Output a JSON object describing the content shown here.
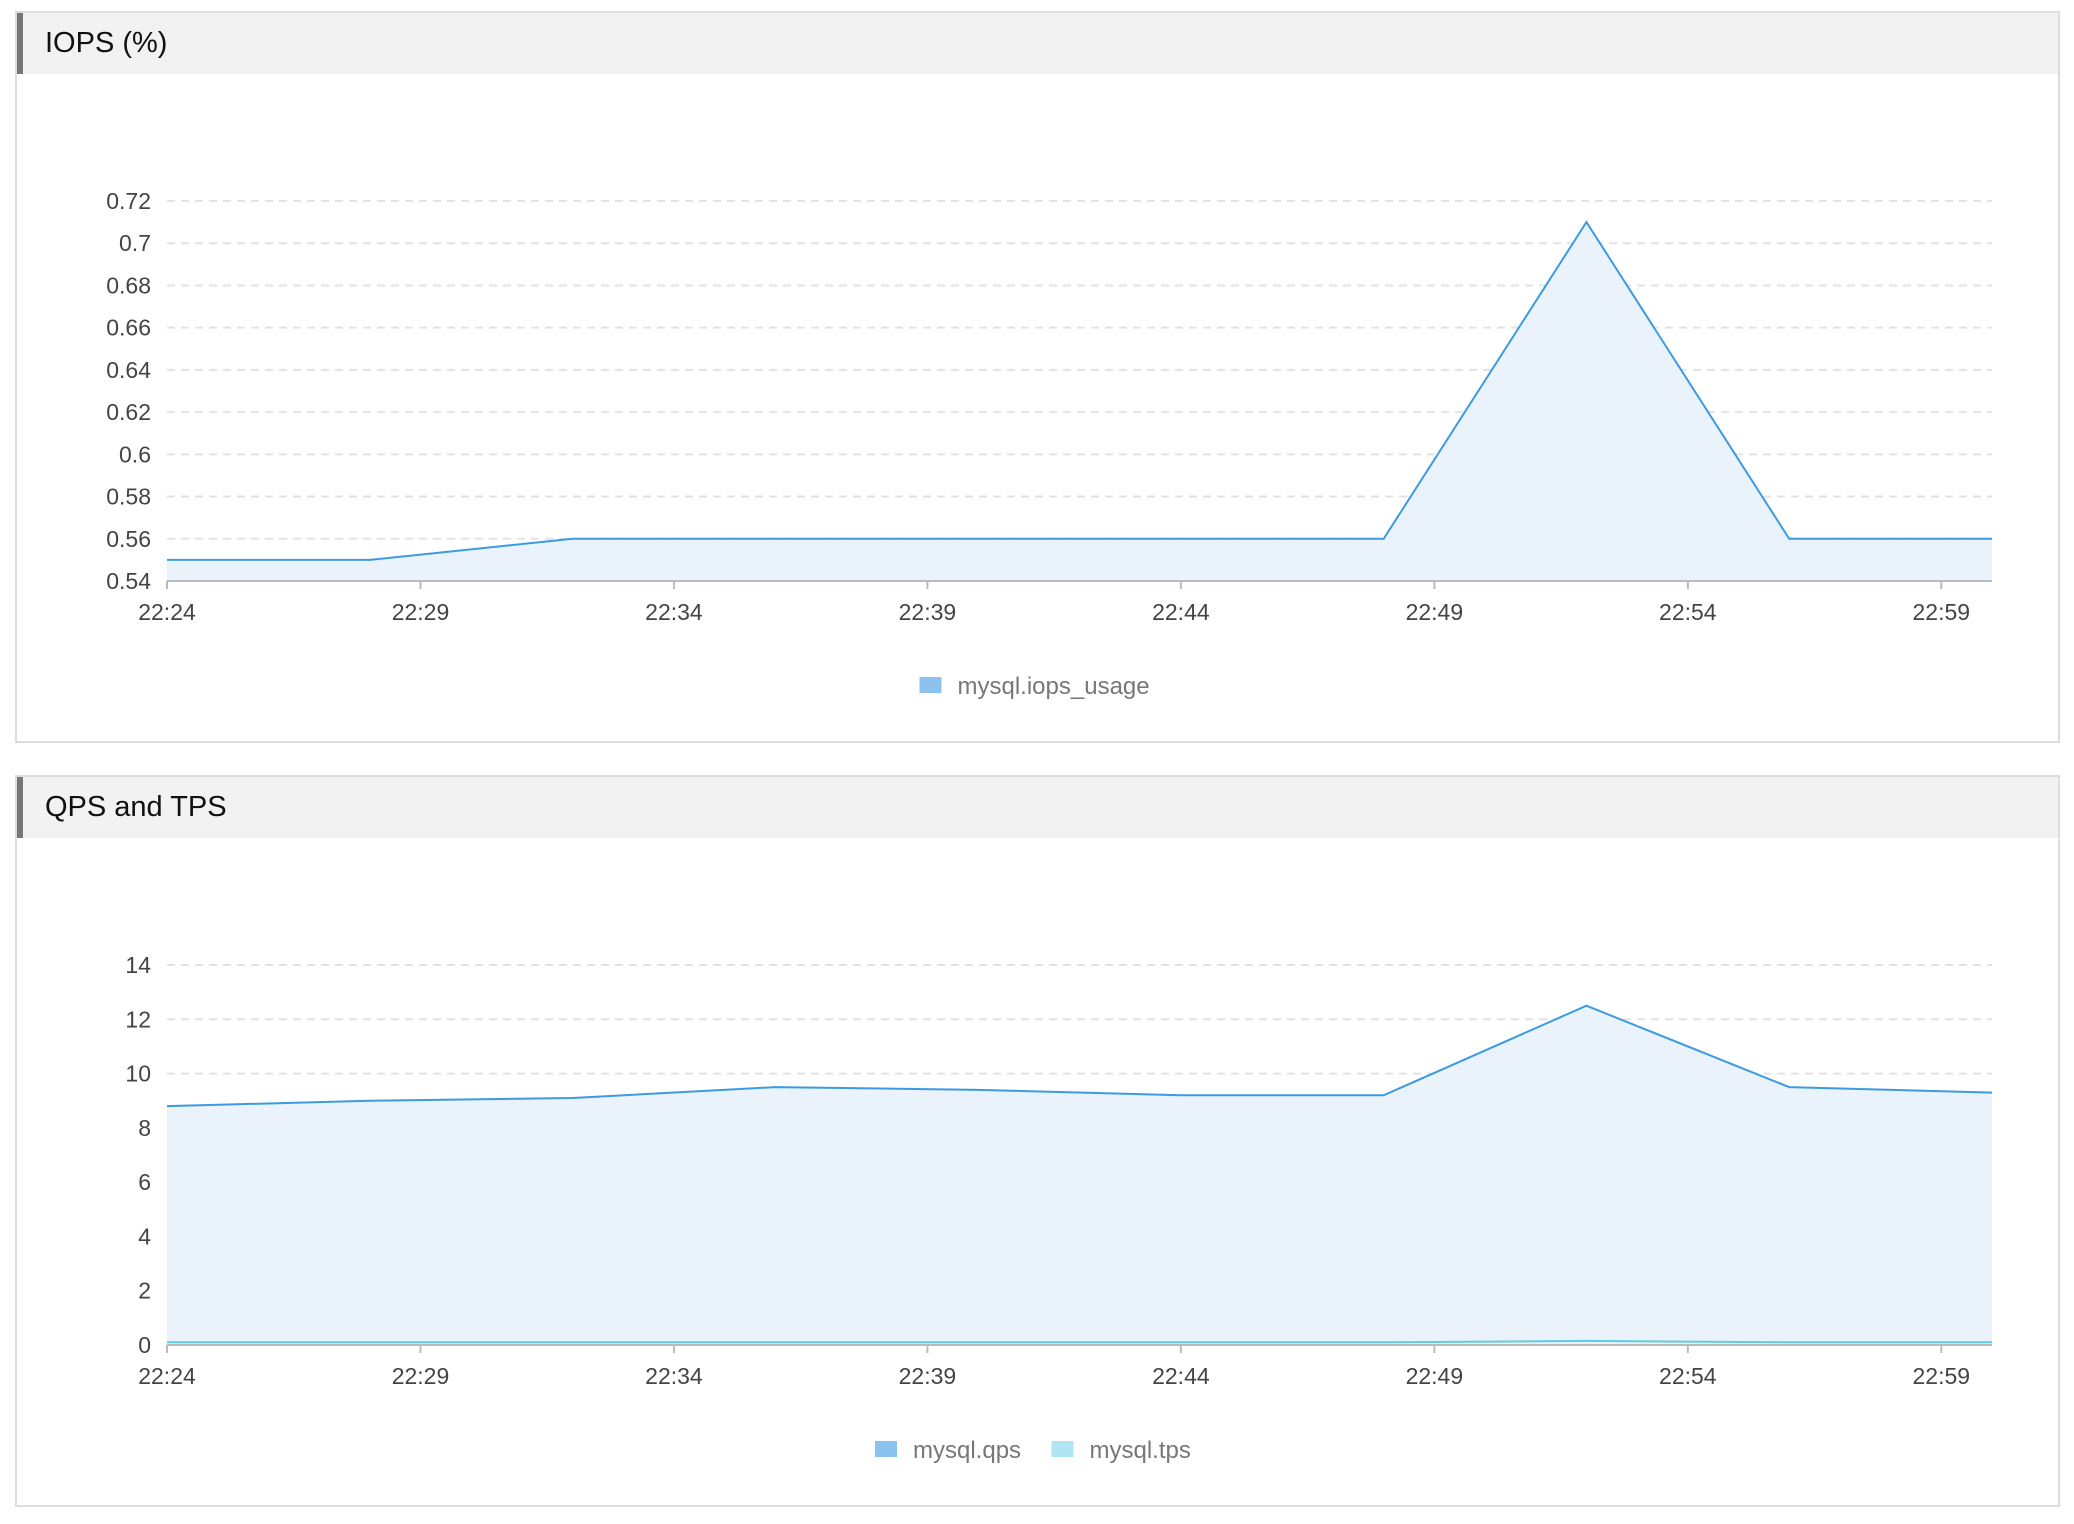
{
  "panels": [
    {
      "title": "IOPS (%)"
    },
    {
      "title": "QPS and TPS"
    }
  ],
  "chart_data": [
    {
      "type": "area",
      "title": "IOPS (%)",
      "x": [
        "22:24",
        "22:28",
        "22:32",
        "22:36",
        "22:40",
        "22:44",
        "22:48",
        "22:52",
        "22:56",
        "23:00"
      ],
      "xticks": [
        "22:24",
        "22:29",
        "22:34",
        "22:39",
        "22:44",
        "22:49",
        "22:54",
        "22:59"
      ],
      "yticks": [
        "0.54",
        "0.56",
        "0.58",
        "0.6",
        "0.62",
        "0.64",
        "0.66",
        "0.68",
        "0.7",
        "0.72"
      ],
      "ylim": [
        0.54,
        0.72
      ],
      "grid": true,
      "legend_position": "bottom-center",
      "series": [
        {
          "name": "mysql.iops_usage",
          "color": "#3c9be0",
          "legend_color": "#8cc3ee",
          "values": [
            0.55,
            0.55,
            0.56,
            0.56,
            0.56,
            0.56,
            0.56,
            0.71,
            0.56,
            0.56
          ]
        }
      ]
    },
    {
      "type": "area",
      "title": "QPS and TPS",
      "x": [
        "22:24",
        "22:28",
        "22:32",
        "22:36",
        "22:40",
        "22:44",
        "22:48",
        "22:52",
        "22:56",
        "23:00"
      ],
      "xticks": [
        "22:24",
        "22:29",
        "22:34",
        "22:39",
        "22:44",
        "22:49",
        "22:54",
        "22:59"
      ],
      "yticks": [
        "0",
        "2",
        "4",
        "6",
        "8",
        "10",
        "12",
        "14"
      ],
      "ylim": [
        0,
        14
      ],
      "grid": true,
      "legend_position": "bottom-center",
      "series": [
        {
          "name": "mysql.qps",
          "color": "#3c9be0",
          "legend_color": "#8cc3ee",
          "values": [
            8.8,
            9.0,
            9.1,
            9.5,
            9.4,
            9.2,
            9.2,
            12.5,
            9.5,
            9.3
          ]
        },
        {
          "name": "mysql.tps",
          "color": "#5fcde4",
          "legend_color": "#b0e6f2",
          "values": [
            0.1,
            0.1,
            0.1,
            0.1,
            0.1,
            0.1,
            0.1,
            0.15,
            0.1,
            0.1
          ]
        }
      ]
    }
  ]
}
